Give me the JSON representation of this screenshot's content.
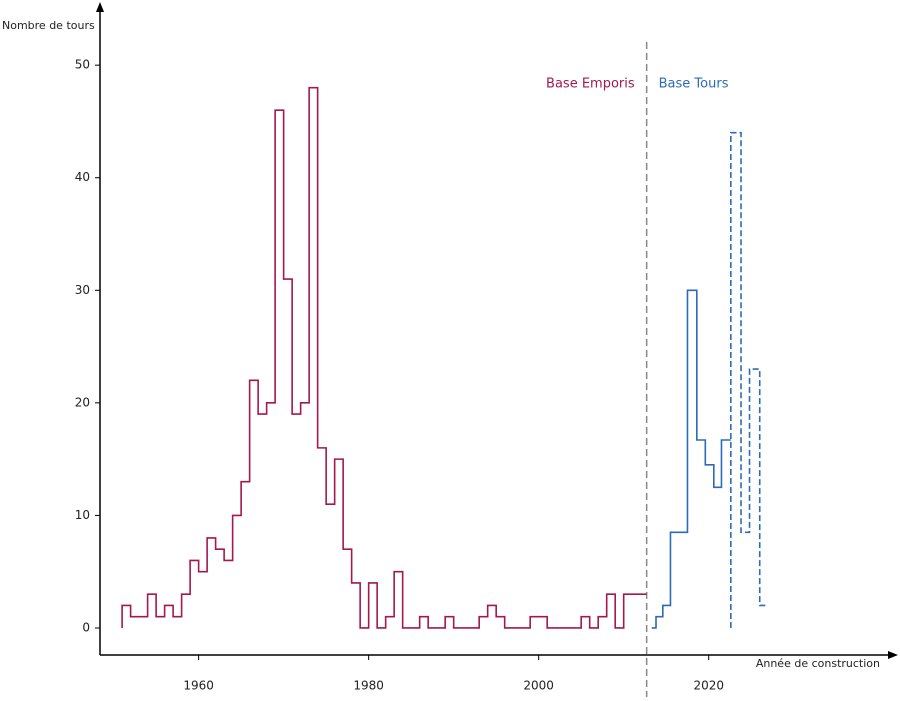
{
  "chart_data": {
    "type": "step",
    "y_label": "Nombre de tours",
    "x_label": "Année de construction",
    "xlim": [
      1948.4,
      2042.5
    ],
    "xticks": [
      1960,
      1980,
      2000,
      2020
    ],
    "ylim": [
      -2.4,
      54.9
    ],
    "yticks": [
      0,
      10,
      20,
      30,
      40,
      50
    ],
    "divider_x": 2012.7,
    "annotations": [
      {
        "text": "Base Emporis",
        "color": "#a3184e"
      },
      {
        "text": "Base Tours",
        "color": "#2c6bb5"
      }
    ],
    "series": [
      {
        "color": "#a3184e",
        "dash": false,
        "x": [
          1951,
          1952,
          1953,
          1954,
          1955,
          1956,
          1957,
          1958,
          1959,
          1960,
          1961,
          1962,
          1963,
          1964,
          1965,
          1966,
          1967,
          1968,
          1969,
          1970,
          1971,
          1972,
          1973,
          1974,
          1975,
          1976,
          1977,
          1978,
          1979,
          1980,
          1981,
          1982,
          1983,
          1984,
          1985,
          1986,
          1987,
          1988,
          1989,
          1990,
          1991,
          1992,
          1993,
          1994,
          1995,
          1996,
          1997,
          1998,
          1999,
          2000,
          2001,
          2002,
          2003,
          2004,
          2005,
          2006,
          2007,
          2008,
          2009,
          2010,
          2011,
          2012.7
        ],
        "values": [
          2,
          1,
          1,
          3,
          1,
          2,
          1,
          3,
          6,
          5,
          8,
          7,
          6,
          10,
          13,
          22,
          19,
          20,
          46,
          31,
          19,
          20,
          48,
          16,
          11,
          15,
          7,
          4,
          0,
          4,
          0,
          1,
          5,
          0,
          0,
          1,
          0,
          0,
          1,
          0,
          0,
          0,
          1,
          2,
          1,
          0,
          0,
          0,
          1,
          1,
          0,
          0,
          0,
          0,
          1,
          0,
          1,
          3,
          0,
          3,
          3,
          3
        ]
      },
      {
        "color": "#2c6bb5",
        "dash": false,
        "x": [
          2013.3,
          2013.8,
          2014.6,
          2015.5,
          2017.5,
          2018.6,
          2019.6,
          2020.6,
          2021.5,
          2022.6
        ],
        "values": [
          0,
          1,
          2,
          8.5,
          30,
          16.7,
          14.5,
          12.5,
          16.7,
          16.7
        ]
      },
      {
        "color": "#2c6bb5",
        "dash": true,
        "x": [
          2022.6,
          2023.8,
          2024.8,
          2026,
          2026.7
        ],
        "values": [
          44,
          8.5,
          23,
          2,
          2
        ]
      }
    ]
  }
}
